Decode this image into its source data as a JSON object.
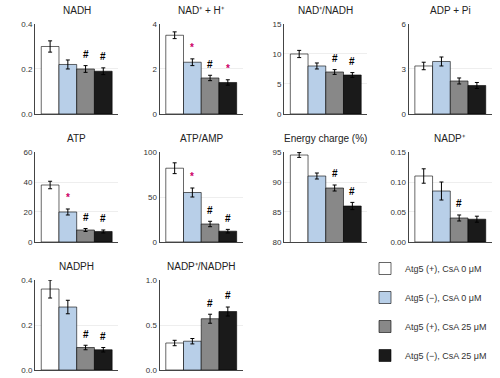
{
  "chart_data": [
    {
      "type": "bar",
      "title": "NADH",
      "tick_labels": "y",
      "legend": "lower right",
      "series": [
        {
          "name": "Atg5 (+), CsA 0 μM",
          "color": "white",
          "values": [
            0.3
          ],
          "errors": [
            0.025
          ]
        },
        {
          "name": "Atg5 (−), CsA 0 μM",
          "color": "#b8cfe8",
          "values": [
            0.22
          ],
          "errors": [
            0.02
          ]
        },
        {
          "name": "Atg5 (+), CsA 25 μM",
          "color": "#888888",
          "values": [
            0.2
          ],
          "errors": [
            0.015
          ]
        },
        {
          "name": "Atg5 (−), CsA 25 μM",
          "color": "#1a1a1a",
          "values": [
            0.19
          ],
          "errors": [
            0.015
          ]
        }
      ],
      "ylim": [
        0.0,
        0.4
      ],
      "yticks": [
        {
          "value": 0.0,
          "label": "0.0"
        },
        0.2,
        0.4
      ],
      "annotations": [
        {
          "text": "#",
          "series": 2,
          "color": "black"
        },
        {
          "text": "#",
          "series": 3,
          "color": "black"
        }
      ]
    },
    {
      "type": "bar",
      "title": "NAD⁺ + H⁺",
      "tick_labels": "y",
      "series": [
        {
          "name": "Atg5 (+), CsA 0 μM",
          "color": "white",
          "values": [
            3.5
          ],
          "errors": [
            0.15
          ]
        },
        {
          "name": "Atg5 (−), CsA 0 μM",
          "color": "#b8cfe8",
          "values": [
            2.3
          ],
          "errors": [
            0.15
          ]
        },
        {
          "name": "Atg5 (+), CsA 25 μM",
          "color": "#888888",
          "values": [
            1.6
          ],
          "errors": [
            0.12
          ]
        },
        {
          "name": "Atg5 (−), CsA 25 μM",
          "color": "#1a1a1a",
          "values": [
            1.4
          ],
          "errors": [
            0.12
          ]
        }
      ],
      "ylim": [
        0,
        4
      ],
      "yticks": [
        0,
        2,
        4
      ],
      "annotations": [
        {
          "text": "*",
          "series": 1,
          "color": "#cc0066"
        },
        {
          "text": "#",
          "series": 2,
          "color": "black"
        },
        {
          "text": "*",
          "series": 3,
          "color": "#cc0066"
        }
      ]
    },
    {
      "type": "bar",
      "title": "NAD⁺/NADH",
      "tick_labels": "y",
      "series": [
        {
          "name": "Atg5 (+), CsA 0 μM",
          "color": "white",
          "values": [
            10.0
          ],
          "errors": [
            0.6
          ]
        },
        {
          "name": "Atg5 (−), CsA 0 μM",
          "color": "#b8cfe8",
          "values": [
            8.0
          ],
          "errors": [
            0.5
          ]
        },
        {
          "name": "Atg5 (+), CsA 25 μM",
          "color": "#888888",
          "values": [
            7.0
          ],
          "errors": [
            0.4
          ]
        },
        {
          "name": "Atg5 (−), CsA 25 μM",
          "color": "#1a1a1a",
          "values": [
            6.5
          ],
          "errors": [
            0.4
          ]
        }
      ],
      "ylim": [
        0,
        15
      ],
      "yticks": [
        0,
        5,
        10,
        15
      ],
      "annotations": [
        {
          "text": "#",
          "series": 2,
          "color": "black"
        },
        {
          "text": "#",
          "series": 3,
          "color": "black"
        }
      ]
    },
    {
      "type": "bar",
      "title": "ADP + Pi",
      "tick_labels": "y",
      "series": [
        {
          "name": "Atg5 (+), CsA 0 μM",
          "color": "white",
          "values": [
            3.2
          ],
          "errors": [
            0.25
          ]
        },
        {
          "name": "Atg5 (−), CsA 0 μM",
          "color": "#b8cfe8",
          "values": [
            3.5
          ],
          "errors": [
            0.3
          ]
        },
        {
          "name": "Atg5 (+), CsA 25 μM",
          "color": "#888888",
          "values": [
            2.2
          ],
          "errors": [
            0.2
          ]
        },
        {
          "name": "Atg5 (−), CsA 25 μM",
          "color": "#1a1a1a",
          "values": [
            1.9
          ],
          "errors": [
            0.2
          ]
        }
      ],
      "ylim": [
        0,
        6
      ],
      "yticks": [
        0,
        3,
        6
      ]
    },
    {
      "type": "bar",
      "title": "ATP",
      "tick_labels": "y",
      "series": [
        {
          "name": "Atg5 (+), CsA 0 μM",
          "color": "white",
          "values": [
            38
          ],
          "errors": [
            2.5
          ]
        },
        {
          "name": "Atg5 (−), CsA 0 μM",
          "color": "#b8cfe8",
          "values": [
            20
          ],
          "errors": [
            2
          ]
        },
        {
          "name": "Atg5 (+), CsA 25 μM",
          "color": "#888888",
          "values": [
            8
          ],
          "errors": [
            1
          ]
        },
        {
          "name": "Atg5 (−), CsA 25 μM",
          "color": "#1a1a1a",
          "values": [
            7
          ],
          "errors": [
            1
          ]
        }
      ],
      "ylim": [
        0,
        60
      ],
      "yticks": [
        0,
        20,
        40,
        60
      ],
      "annotations": [
        {
          "text": "*",
          "series": 1,
          "color": "#cc0066"
        },
        {
          "text": "#",
          "series": 2,
          "color": "black"
        },
        {
          "text": "#",
          "series": 3,
          "color": "black"
        }
      ]
    },
    {
      "type": "bar",
      "title": "ATP/AMP",
      "tick_labels": "y",
      "series": [
        {
          "name": "Atg5 (+), CsA 0 μM",
          "color": "white",
          "values": [
            82
          ],
          "errors": [
            6
          ]
        },
        {
          "name": "Atg5 (−), CsA 0 μM",
          "color": "#b8cfe8",
          "values": [
            55
          ],
          "errors": [
            5
          ]
        },
        {
          "name": "Atg5 (+), CsA 25 μM",
          "color": "#888888",
          "values": [
            20
          ],
          "errors": [
            3
          ]
        },
        {
          "name": "Atg5 (−), CsA 25 μM",
          "color": "#1a1a1a",
          "values": [
            12
          ],
          "errors": [
            2
          ]
        }
      ],
      "ylim": [
        0,
        100
      ],
      "yticks": [
        0,
        50,
        100
      ],
      "annotations": [
        {
          "text": "*",
          "series": 1,
          "color": "#cc0066"
        },
        {
          "text": "#",
          "series": 2,
          "color": "black"
        },
        {
          "text": "#",
          "series": 3,
          "color": "black"
        }
      ]
    },
    {
      "type": "bar",
      "title": "Energy charge (%)",
      "tick_labels": "y",
      "series": [
        {
          "name": "Atg5 (+), CsA 0 μM",
          "color": "white",
          "values": [
            94.5
          ],
          "errors": [
            0.4
          ]
        },
        {
          "name": "Atg5 (−), CsA 0 μM",
          "color": "#b8cfe8",
          "values": [
            91
          ],
          "errors": [
            0.5
          ]
        },
        {
          "name": "Atg5 (+), CsA 25 μM",
          "color": "#888888",
          "values": [
            89
          ],
          "errors": [
            0.5
          ]
        },
        {
          "name": "Atg5 (−), CsA 25 μM",
          "color": "#1a1a1a",
          "values": [
            86
          ],
          "errors": [
            0.6
          ]
        }
      ],
      "ylim": [
        80,
        95
      ],
      "yticks": [
        80,
        85,
        90,
        95
      ],
      "annotations": [
        {
          "text": "#",
          "series": 2,
          "color": "black"
        },
        {
          "text": "#",
          "series": 3,
          "color": "black"
        }
      ]
    },
    {
      "type": "bar",
      "title": "NADP⁺",
      "tick_labels": "y",
      "series": [
        {
          "name": "Atg5 (+), CsA 0 μM",
          "color": "white",
          "values": [
            0.11
          ],
          "errors": [
            0.012
          ]
        },
        {
          "name": "Atg5 (−), CsA 0 μM",
          "color": "#b8cfe8",
          "values": [
            0.085
          ],
          "errors": [
            0.015
          ]
        },
        {
          "name": "Atg5 (+), CsA 25 μM",
          "color": "#888888",
          "values": [
            0.04
          ],
          "errors": [
            0.005
          ]
        },
        {
          "name": "Atg5 (−), CsA 25 μM",
          "color": "#1a1a1a",
          "values": [
            0.038
          ],
          "errors": [
            0.005
          ]
        }
      ],
      "ylim": [
        0.0,
        0.15
      ],
      "yticks": [
        {
          "value": 0.0,
          "label": "0.00"
        },
        0.05,
        {
          "value": 0.1,
          "label": "0.10"
        },
        0.15
      ],
      "annotations": [
        {
          "text": "#",
          "series": 2,
          "color": "black"
        }
      ]
    },
    {
      "type": "bar",
      "title": "NADPH",
      "tick_labels": "y",
      "series": [
        {
          "name": "Atg5 (+), CsA 0 μM",
          "color": "white",
          "values": [
            0.36
          ],
          "errors": [
            0.04
          ]
        },
        {
          "name": "Atg5 (−), CsA 0 μM",
          "color": "#b8cfe8",
          "values": [
            0.28
          ],
          "errors": [
            0.03
          ]
        },
        {
          "name": "Atg5 (+), CsA 25 μM",
          "color": "#888888",
          "values": [
            0.1
          ],
          "errors": [
            0.01
          ]
        },
        {
          "name": "Atg5 (−), CsA 25 μM",
          "color": "#1a1a1a",
          "values": [
            0.09
          ],
          "errors": [
            0.01
          ]
        }
      ],
      "ylim": [
        0.0,
        0.4
      ],
      "yticks": [
        {
          "value": 0.0,
          "label": "0.0"
        },
        0.2,
        0.4
      ],
      "annotations": [
        {
          "text": "#",
          "series": 2,
          "color": "black"
        },
        {
          "text": "#",
          "series": 3,
          "color": "black"
        }
      ]
    },
    {
      "type": "bar",
      "title": "NADP⁺/NADPH",
      "tick_labels": "y",
      "series": [
        {
          "name": "Atg5 (+), CsA 0 μM",
          "color": "white",
          "values": [
            0.3
          ],
          "errors": [
            0.03
          ]
        },
        {
          "name": "Atg5 (−), CsA 0 μM",
          "color": "#b8cfe8",
          "values": [
            0.32
          ],
          "errors": [
            0.03
          ]
        },
        {
          "name": "Atg5 (+), CsA 25 μM",
          "color": "#888888",
          "values": [
            0.57
          ],
          "errors": [
            0.05
          ]
        },
        {
          "name": "Atg5 (−), CsA 25 μM",
          "color": "#1a1a1a",
          "values": [
            0.65
          ],
          "errors": [
            0.05
          ]
        }
      ],
      "ylim": [
        0.0,
        1.0
      ],
      "yticks": [
        {
          "value": 0.0,
          "label": "0.0"
        },
        0.5,
        {
          "value": 1.0,
          "label": "1.0"
        }
      ],
      "annotations": [
        {
          "text": "#",
          "series": 2,
          "color": "black"
        },
        {
          "text": "#",
          "series": 3,
          "color": "black"
        }
      ]
    }
  ]
}
